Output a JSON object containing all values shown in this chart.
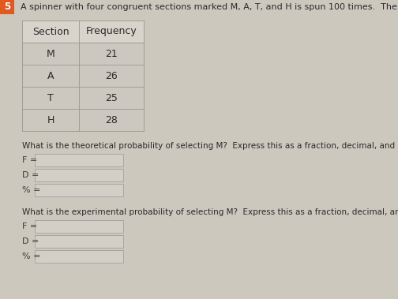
{
  "problem_number": "5",
  "header_text": "A spinner with four congruent sections marked M, A, T, and H is spun 100 times.  The results are shown below.",
  "table_headers": [
    "Section",
    "Frequency"
  ],
  "table_rows": [
    [
      "M",
      "21"
    ],
    [
      "A",
      "26"
    ],
    [
      "T",
      "25"
    ],
    [
      "H",
      "28"
    ]
  ],
  "question1": "What is the theoretical probability of selecting M?  Express this as a fraction, decimal, and percent.",
  "question2": "What is the experimental probability of selecting M?  Express this as a fraction, decimal, and percent.",
  "labels": [
    "F =",
    "D =",
    "% ="
  ],
  "bg_color": "#cdc8be",
  "table_line_color": "#9a9690",
  "box_bg": "#d4cfc6",
  "box_edge": "#9a9690",
  "number_box_color": "#e05a20",
  "text_color": "#2a2a2a",
  "label_color": "#3a3a3a",
  "font_size_header": 8.0,
  "font_size_table": 9.0,
  "font_size_question": 7.5,
  "font_size_label": 8.0,
  "font_size_badge": 8.5
}
